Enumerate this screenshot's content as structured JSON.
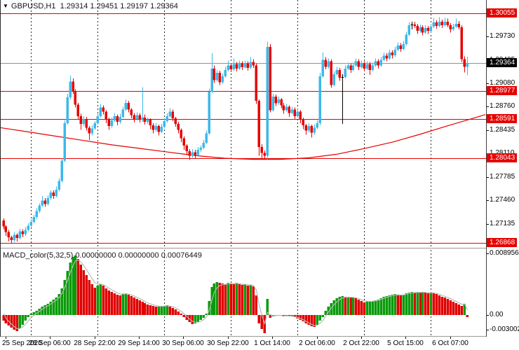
{
  "title": {
    "symbol": "GBPUSD,H1",
    "open": "1.29314",
    "high": "1.29451",
    "low": "1.29197",
    "close": "1.29364"
  },
  "indicator_header": {
    "name": "MACD_color(5,32,5)",
    "value1": "0.00000000",
    "value2": "0.00000000",
    "value3": "0.00076449"
  },
  "colors": {
    "bull": "#3cb8ea",
    "bear": "#e60000",
    "doji": "#000000",
    "level_line": "#e60000",
    "level_box_bg": "#e60000",
    "level_box_text": "#ffffff",
    "bid_line": "#8f8f8f",
    "bid_box_bg": "#000000",
    "bid_box_text": "#ffffff",
    "ma_line": "#e60000",
    "macd_up": "#0a9b0a",
    "macd_down": "#e00000",
    "signal_line": "#b8b8b8",
    "day_grid": "#2b2b2b",
    "axis_text": "#000000"
  },
  "price_axis": {
    "plain_labels": [
      "1.29730",
      "1.29405",
      "1.29080",
      "1.28760",
      "1.28435",
      "1.28110",
      "1.27785",
      "1.27460",
      "1.27135"
    ],
    "level_labels": [
      "1.30055",
      "1.28977",
      "1.28591",
      "1.28043",
      "1.26868"
    ],
    "bid_label": "1.29364"
  },
  "macd_axis": {
    "max_label": "0.0089563",
    "zero_label": "0.00",
    "min_label": "-0.0030021"
  },
  "time_axis": {
    "labels": [
      "25 Sep 2020",
      "28 Sep 06:00",
      "28 Sep 22:00",
      "29 Sep 14:00",
      "30 Sep 06:00",
      "30 Sep 22:00",
      "1 Oct 14:00",
      "2 Oct 06:00",
      "2 Oct 22:00",
      "5 Oct 15:00",
      "6 Oct 07:00"
    ]
  },
  "chart_data": {
    "type": "candlestick",
    "symbol": "GBPUSD",
    "timeframe": "H1",
    "title": "GBPUSD,H1",
    "ylim": [
      1.2683,
      1.3024
    ],
    "grid": "vertical-day-separators-only",
    "legend_position": "none",
    "current_bar": {
      "open": 1.29314,
      "high": 1.29451,
      "low": 1.29197,
      "close": 1.29364
    },
    "level_lines": [
      1.30055,
      1.28977,
      1.28591,
      1.28043,
      1.26868
    ],
    "bid_price": 1.29364,
    "day_separator_indices": [
      10,
      34,
      58,
      82,
      106,
      130,
      154
    ],
    "first_open": 1.2718,
    "bars_format": "[close, upper_wick_pips, lower_wick_pips]; open = previous close",
    "bars": [
      [
        1.271,
        3,
        4
      ],
      [
        1.2702,
        2,
        5
      ],
      [
        1.2695,
        3,
        6
      ],
      [
        1.2691,
        2,
        5
      ],
      [
        1.2698,
        4,
        3
      ],
      [
        1.2694,
        2,
        5
      ],
      [
        1.2703,
        4,
        2
      ],
      [
        1.2699,
        3,
        4
      ],
      [
        1.2705,
        4,
        2
      ],
      [
        1.2711,
        3,
        2
      ],
      [
        1.2716,
        4,
        2
      ],
      [
        1.2723,
        3,
        2
      ],
      [
        1.2731,
        4,
        3
      ],
      [
        1.2739,
        3,
        2
      ],
      [
        1.2746,
        6,
        2
      ],
      [
        1.2741,
        3,
        4
      ],
      [
        1.2749,
        4,
        2
      ],
      [
        1.2757,
        3,
        2
      ],
      [
        1.2752,
        3,
        4
      ],
      [
        1.2761,
        4,
        2
      ],
      [
        1.2773,
        4,
        2
      ],
      [
        1.2801,
        3,
        2
      ],
      [
        1.2853,
        4,
        2
      ],
      [
        1.2889,
        5,
        2
      ],
      [
        1.2911,
        8,
        3
      ],
      [
        1.2897,
        4,
        3
      ],
      [
        1.2879,
        3,
        4
      ],
      [
        1.2863,
        2,
        5
      ],
      [
        1.2852,
        3,
        8
      ],
      [
        1.2859,
        4,
        3
      ],
      [
        1.2847,
        3,
        4
      ],
      [
        1.2839,
        2,
        9
      ],
      [
        1.2846,
        4,
        3
      ],
      [
        1.2853,
        3,
        2
      ],
      [
        1.2863,
        4,
        2
      ],
      [
        1.2875,
        5,
        2
      ],
      [
        1.2869,
        3,
        4
      ],
      [
        1.2858,
        2,
        5
      ],
      [
        1.2849,
        3,
        5
      ],
      [
        1.2857,
        4,
        2
      ],
      [
        1.2863,
        4,
        2
      ],
      [
        1.2855,
        2,
        5
      ],
      [
        1.2862,
        4,
        3
      ],
      [
        1.2872,
        4,
        2
      ],
      [
        1.2881,
        5,
        2
      ],
      [
        1.2872,
        3,
        4
      ],
      [
        1.2864,
        2,
        4
      ],
      [
        1.2859,
        3,
        5
      ],
      [
        1.2864,
        4,
        2
      ],
      [
        1.2858,
        3,
        4
      ],
      [
        1.2861,
        42,
        3
      ],
      [
        1.2855,
        4,
        4
      ],
      [
        1.2858,
        3,
        3
      ],
      [
        1.285,
        2,
        5
      ],
      [
        1.2844,
        3,
        5
      ],
      [
        1.2849,
        4,
        2
      ],
      [
        1.2841,
        2,
        5
      ],
      [
        1.2848,
        4,
        2
      ],
      [
        1.2856,
        4,
        2
      ],
      [
        1.2863,
        4,
        2
      ],
      [
        1.2869,
        5,
        2
      ],
      [
        1.286,
        3,
        4
      ],
      [
        1.2852,
        2,
        4
      ],
      [
        1.2844,
        3,
        5
      ],
      [
        1.2832,
        2,
        5
      ],
      [
        1.2822,
        3,
        6
      ],
      [
        1.2814,
        2,
        5
      ],
      [
        1.2808,
        3,
        6
      ],
      [
        1.2813,
        4,
        3
      ],
      [
        1.2809,
        3,
        5
      ],
      [
        1.2816,
        4,
        2
      ],
      [
        1.2819,
        3,
        3
      ],
      [
        1.2826,
        4,
        2
      ],
      [
        1.2839,
        4,
        2
      ],
      [
        1.2897,
        4,
        2
      ],
      [
        1.2929,
        21,
        2
      ],
      [
        1.2913,
        4,
        4
      ],
      [
        1.2923,
        4,
        2
      ],
      [
        1.291,
        3,
        4
      ],
      [
        1.2918,
        4,
        2
      ],
      [
        1.2927,
        4,
        2
      ],
      [
        1.2933,
        7,
        2
      ],
      [
        1.2928,
        3,
        4
      ],
      [
        1.2935,
        8,
        2
      ],
      [
        1.2929,
        3,
        4
      ],
      [
        1.2936,
        4,
        2
      ],
      [
        1.2931,
        3,
        4
      ],
      [
        1.2936,
        4,
        2
      ],
      [
        1.293,
        3,
        4
      ],
      [
        1.2938,
        7,
        2
      ],
      [
        1.2933,
        4,
        3
      ],
      [
        1.2884,
        3,
        4
      ],
      [
        1.282,
        2,
        12
      ],
      [
        1.2812,
        4,
        9
      ],
      [
        1.2808,
        3,
        4
      ],
      [
        1.2959,
        7,
        5
      ],
      [
        1.2871,
        4,
        3
      ],
      [
        1.289,
        4,
        2
      ],
      [
        1.2881,
        3,
        4
      ],
      [
        1.2886,
        4,
        2
      ],
      [
        1.2878,
        2,
        4
      ],
      [
        1.2871,
        3,
        5
      ],
      [
        1.2876,
        4,
        2
      ],
      [
        1.2867,
        2,
        5
      ],
      [
        1.2872,
        4,
        2
      ],
      [
        1.2863,
        3,
        5
      ],
      [
        1.2869,
        4,
        2
      ],
      [
        1.2858,
        2,
        5
      ],
      [
        1.285,
        3,
        5
      ],
      [
        1.2843,
        2,
        6
      ],
      [
        1.2849,
        4,
        3
      ],
      [
        1.284,
        2,
        7
      ],
      [
        1.2847,
        4,
        3
      ],
      [
        1.2853,
        4,
        2
      ],
      [
        1.2918,
        5,
        3
      ],
      [
        1.2941,
        10,
        2
      ],
      [
        1.2931,
        4,
        3
      ],
      [
        1.2939,
        4,
        2
      ],
      [
        1.2906,
        3,
        4
      ],
      [
        1.2921,
        4,
        2
      ],
      [
        1.2927,
        4,
        2
      ],
      [
        1.2916,
        3,
        4
      ],
      [
        1.2917,
        4,
        64
      ],
      [
        1.2929,
        4,
        2
      ],
      [
        1.2933,
        4,
        2
      ],
      [
        1.2927,
        3,
        4
      ],
      [
        1.2933,
        4,
        2
      ],
      [
        1.2939,
        4,
        2
      ],
      [
        1.2931,
        3,
        4
      ],
      [
        1.2936,
        4,
        2
      ],
      [
        1.2929,
        3,
        4
      ],
      [
        1.2935,
        4,
        2
      ],
      [
        1.2927,
        3,
        7
      ],
      [
        1.2933,
        4,
        2
      ],
      [
        1.2939,
        4,
        2
      ],
      [
        1.2933,
        3,
        4
      ],
      [
        1.2941,
        4,
        2
      ],
      [
        1.2947,
        4,
        2
      ],
      [
        1.2943,
        3,
        4
      ],
      [
        1.2951,
        4,
        2
      ],
      [
        1.2947,
        3,
        4
      ],
      [
        1.2955,
        4,
        2
      ],
      [
        1.2961,
        4,
        2
      ],
      [
        1.2956,
        3,
        4
      ],
      [
        1.2963,
        4,
        2
      ],
      [
        1.2976,
        4,
        2
      ],
      [
        1.2989,
        4,
        2
      ],
      [
        1.299,
        4,
        6
      ],
      [
        1.2988,
        4,
        3
      ],
      [
        1.2981,
        3,
        4
      ],
      [
        1.2986,
        4,
        2
      ],
      [
        1.2979,
        3,
        4
      ],
      [
        1.2985,
        4,
        2
      ],
      [
        1.2981,
        3,
        4
      ],
      [
        1.2987,
        4,
        2
      ],
      [
        1.2993,
        6,
        2
      ],
      [
        1.2988,
        3,
        4
      ],
      [
        1.2994,
        6,
        2
      ],
      [
        1.2989,
        3,
        4
      ],
      [
        1.2994,
        5,
        2
      ],
      [
        1.2989,
        4,
        3
      ],
      [
        1.2983,
        3,
        4
      ],
      [
        1.2987,
        4,
        2
      ],
      [
        1.2991,
        7,
        2
      ],
      [
        1.2986,
        4,
        3
      ],
      [
        1.2942,
        3,
        4
      ],
      [
        1.29314,
        4,
        8
      ],
      [
        1.29364,
        8.7,
        11.7
      ]
    ],
    "doji_indices": [
      122,
      147
    ],
    "ma_line": {
      "description": "long-period moving average, red",
      "points": [
        [
          0,
          1.2847
        ],
        [
          40,
          1.2841
        ],
        [
          80,
          1.2835
        ],
        [
          120,
          1.2829
        ],
        [
          160,
          1.2823
        ],
        [
          200,
          1.2818
        ],
        [
          240,
          1.2813
        ],
        [
          280,
          1.2808
        ],
        [
          320,
          1.28045
        ],
        [
          360,
          1.2803
        ],
        [
          400,
          1.2803
        ],
        [
          440,
          1.2805
        ],
        [
          480,
          1.281
        ],
        [
          520,
          1.2818
        ],
        [
          560,
          1.2827
        ],
        [
          600,
          1.2838
        ],
        [
          640,
          1.285
        ],
        [
          668,
          1.2858
        ],
        [
          692,
          1.2865
        ]
      ]
    },
    "macd": {
      "type": "histogram+signal",
      "params": "5,32,5",
      "unit": 0.0001,
      "values_1e4": [
        -8,
        -12,
        -15,
        -18,
        -21,
        -23,
        -19,
        -14,
        -8,
        -3,
        2,
        4,
        6,
        9,
        12,
        14,
        16,
        19,
        22,
        25,
        30,
        38,
        50,
        63,
        75,
        83,
        85,
        80,
        72,
        64,
        57,
        50,
        44,
        39,
        42,
        44,
        42,
        38,
        35,
        33,
        31,
        29,
        28,
        30,
        31,
        29,
        27,
        25,
        23,
        21,
        19,
        17,
        15,
        14,
        13,
        12,
        12,
        12,
        13,
        14,
        12,
        10,
        8,
        5,
        2,
        -3,
        -7,
        -10,
        -13,
        -12,
        -10,
        -7,
        -4,
        2,
        20,
        40,
        45,
        47,
        46,
        45,
        44,
        46,
        45,
        44,
        46,
        44,
        43,
        44,
        42,
        43,
        41,
        28,
        -12,
        -20,
        -26,
        23,
        -4,
        -2,
        -1,
        0,
        -1,
        -2,
        -1,
        -2,
        -2,
        -3,
        -5,
        -7,
        -9,
        -12,
        -14,
        -16,
        -17,
        -14,
        -8,
        -3,
        6,
        12,
        17,
        21,
        24,
        26,
        27,
        26,
        26,
        25,
        25,
        24,
        22,
        20,
        18,
        19,
        19,
        20,
        21,
        22,
        24,
        26,
        27,
        28,
        29,
        30,
        29,
        28,
        29,
        31,
        32,
        33,
        32,
        33,
        32,
        33,
        32,
        31,
        32,
        31,
        30,
        28,
        26,
        25,
        23,
        21,
        19,
        17,
        15,
        13,
        16,
        -3
      ],
      "signal_seed_1e4": 10,
      "signal_alpha": 0.45,
      "ylim": [
        -0.0030021,
        0.0089563
      ]
    }
  }
}
